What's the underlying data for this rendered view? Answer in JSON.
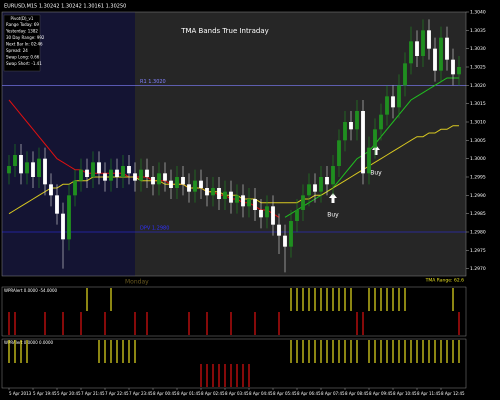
{
  "chart_data": {
    "type": "candlestick",
    "symbol_header": "EURUSD,M15  1.30242 1.30242 1.30161 1.30250",
    "title": "TMA Bands  True Intraday",
    "info_box": {
      "title": "Pivot(D)_v1",
      "rows": [
        "Range Today: 69",
        "Yesterday: 1382",
        "30 Day Range: 992",
        "Next Bar In: 02:46",
        "Spread: 24",
        "Swap Long: 0.66",
        "Swap Short: -1.41"
      ]
    },
    "levels": [
      {
        "label": "R1  1.3020",
        "value": 1.302,
        "color": "#8080ff"
      },
      {
        "label": "DPV  1.2980",
        "value": 1.298,
        "color": "#3030ff"
      }
    ],
    "annotations": [
      "Buy",
      "Buy",
      "Monday",
      "TMA Range: 62.6"
    ],
    "categories": [
      "5 Apr 2013",
      null,
      null,
      null,
      "5 Apr 19:45",
      null,
      null,
      null,
      "5 Apr 20:45",
      null,
      null,
      null,
      "7 Apr 21:45",
      null,
      null,
      null,
      "7 Apr 22:45",
      null,
      null,
      null,
      "7 Apr 23:45",
      null,
      null,
      null,
      "8 Apr 00:45",
      null,
      null,
      null,
      "8 Apr 01:45",
      null,
      null,
      null,
      "8 Apr 02:45",
      null,
      null,
      null,
      "8 Apr 03:45",
      null,
      null,
      null,
      "8 Apr 04:45",
      null,
      null,
      null,
      "8 Apr 05:45",
      null,
      null,
      null,
      "8 Apr 06:45",
      null,
      null,
      null,
      "8 Apr 07:45",
      null,
      null,
      null,
      "8 Apr 08:45",
      null,
      null,
      null,
      "8 Apr 09:45",
      null,
      null,
      null,
      "8 Apr 10:45",
      null,
      null,
      null,
      "8 Apr 11:45",
      null,
      null,
      null,
      "8 Apr 12:45",
      null,
      null,
      null
    ],
    "open": [
      1.2996,
      1.2998,
      1.3001,
      1.2996,
      1.2999,
      1.2995,
      1.3,
      1.2993,
      1.299,
      1.2985,
      1.2978,
      1.299,
      1.2994,
      1.2997,
      1.2995,
      1.2999,
      1.2996,
      1.2994,
      1.2997,
      1.2995,
      1.2998,
      1.2996,
      1.2994,
      1.2997,
      1.2995,
      1.2993,
      1.2996,
      1.2994,
      1.2992,
      1.2995,
      1.2993,
      1.2991,
      1.2994,
      1.2992,
      1.299,
      1.2992,
      1.2989,
      1.2991,
      1.2988,
      1.299,
      1.2987,
      1.2989,
      1.2986,
      1.2984,
      1.2987,
      1.2982,
      1.2979,
      1.2976,
      1.2983,
      1.2986,
      1.299,
      1.2993,
      1.2991,
      1.2995,
      1.2993,
      1.2998,
      1.3005,
      1.301,
      1.3008,
      1.3013,
      1.2996,
      1.3003,
      1.3008,
      1.3012,
      1.3017,
      1.3014,
      1.302,
      1.3026,
      1.3032,
      1.3028,
      1.3035,
      1.303,
      1.3024,
      1.3033,
      1.3027,
      1.3023
    ],
    "high": [
      1.3001,
      1.3004,
      1.3004,
      1.3002,
      1.3002,
      1.3003,
      1.3003,
      1.2996,
      1.2993,
      1.2988,
      1.2993,
      1.2997,
      1.3,
      1.3,
      1.3002,
      1.3002,
      1.2999,
      1.3,
      1.3,
      1.3001,
      1.3001,
      1.2999,
      1.3,
      1.3,
      1.2998,
      1.2999,
      1.2999,
      1.2997,
      1.2998,
      1.2998,
      1.2996,
      1.2997,
      1.2997,
      1.2995,
      1.2995,
      1.2995,
      1.2994,
      1.2994,
      1.2993,
      1.2993,
      1.2992,
      1.2992,
      1.2989,
      1.299,
      1.299,
      1.2985,
      1.2982,
      1.2986,
      1.2989,
      1.2993,
      1.2996,
      1.2996,
      1.2998,
      1.2998,
      1.3001,
      1.3008,
      1.3013,
      1.3013,
      1.3016,
      1.3016,
      1.3006,
      1.3011,
      1.3015,
      1.302,
      1.302,
      1.3023,
      1.3029,
      1.3036,
      1.3035,
      1.3038,
      1.3038,
      1.3033,
      1.3036,
      1.3036,
      1.303,
      1.3028
    ],
    "low": [
      1.2993,
      1.2995,
      1.2993,
      1.2993,
      1.2992,
      1.2992,
      1.299,
      1.2987,
      1.2982,
      1.297,
      1.2975,
      1.2987,
      1.2991,
      1.2992,
      1.2992,
      1.2993,
      1.2991,
      1.2991,
      1.2992,
      1.2992,
      1.2993,
      1.2991,
      1.2991,
      1.2992,
      1.299,
      1.299,
      1.2991,
      1.2989,
      1.2989,
      1.299,
      1.2988,
      1.2988,
      1.2989,
      1.2987,
      1.2987,
      1.2986,
      1.2986,
      1.2985,
      1.2985,
      1.2984,
      1.2984,
      1.2983,
      1.2981,
      1.2981,
      1.2979,
      1.2974,
      1.2969,
      1.2973,
      1.298,
      1.2983,
      1.2987,
      1.2988,
      1.2988,
      1.299,
      1.299,
      1.2995,
      1.3002,
      1.3005,
      1.3005,
      1.2993,
      1.2993,
      1.3,
      1.3005,
      1.3009,
      1.3011,
      1.3011,
      1.3017,
      1.3023,
      1.3025,
      1.3025,
      1.3027,
      1.3021,
      1.3021,
      1.3024,
      1.302,
      1.302
    ],
    "close": [
      1.2998,
      1.3001,
      1.2996,
      1.2999,
      1.2995,
      1.3,
      1.2993,
      1.299,
      1.2985,
      1.2978,
      1.299,
      1.2994,
      1.2997,
      1.2995,
      1.2999,
      1.2996,
      1.2994,
      1.2997,
      1.2995,
      1.2998,
      1.2996,
      1.2994,
      1.2997,
      1.2995,
      1.2993,
      1.2996,
      1.2994,
      1.2992,
      1.2995,
      1.2993,
      1.2991,
      1.2994,
      1.2992,
      1.299,
      1.2992,
      1.2989,
      1.2991,
      1.2988,
      1.299,
      1.2987,
      1.2989,
      1.2986,
      1.2984,
      1.2987,
      1.2982,
      1.2979,
      1.2976,
      1.2983,
      1.2986,
      1.299,
      1.2993,
      1.2991,
      1.2995,
      1.2993,
      1.2998,
      1.3005,
      1.301,
      1.3008,
      1.3013,
      1.2996,
      1.3003,
      1.3008,
      1.3012,
      1.3017,
      1.3014,
      1.302,
      1.3026,
      1.3032,
      1.3028,
      1.3035,
      1.303,
      1.3024,
      1.3033,
      1.3027,
      1.3023,
      1.3025
    ],
    "up_color": "#1f8f1f",
    "down_color": "#ffffff",
    "lines": [
      {
        "color": "#e01010",
        "values": [
          1.3016,
          1.3014,
          1.3012,
          1.301,
          1.3008,
          1.3006,
          1.3004,
          1.3002,
          1.3,
          1.2999,
          1.2998,
          1.2997,
          1.2997,
          1.2996,
          1.2996,
          1.2996,
          1.2996,
          1.2996,
          1.2996,
          1.2996,
          1.2995,
          1.2995,
          1.2995,
          1.2995,
          1.2994,
          1.2994,
          1.2994,
          1.2993,
          1.2993,
          1.2993,
          1.2992,
          1.2992,
          1.2992,
          1.2991,
          1.2991,
          1.299,
          1.299,
          1.2989,
          1.2989,
          1.2988,
          1.2988,
          1.2987,
          1.2986,
          1.2986,
          1.2985,
          1.2984,
          null,
          null,
          null,
          null,
          null,
          null,
          null,
          null,
          null,
          null,
          null,
          null,
          null,
          null,
          null,
          null,
          null,
          null,
          null,
          null,
          null,
          null,
          null,
          null,
          null,
          null,
          null,
          null,
          null,
          null
        ]
      },
      {
        "color": "#20c020",
        "values": [
          null,
          null,
          null,
          null,
          null,
          null,
          null,
          null,
          null,
          null,
          null,
          null,
          null,
          null,
          null,
          null,
          null,
          null,
          null,
          null,
          null,
          null,
          null,
          null,
          null,
          null,
          null,
          null,
          null,
          null,
          null,
          null,
          null,
          null,
          null,
          null,
          null,
          null,
          null,
          null,
          null,
          null,
          null,
          null,
          null,
          null,
          1.2984,
          1.2985,
          1.2986,
          1.2987,
          1.2988,
          1.2989,
          1.299,
          1.2991,
          1.2992,
          1.2994,
          1.2996,
          1.2998,
          1.3,
          1.3001,
          1.3002,
          1.3004,
          1.3006,
          1.3008,
          1.301,
          1.3012,
          1.3014,
          1.3016,
          1.3017,
          1.3018,
          1.3019,
          1.302,
          1.3021,
          1.3022,
          1.3022,
          1.3022
        ]
      },
      {
        "color": "#d8c820",
        "values": [
          1.2985,
          1.2986,
          1.2987,
          1.2988,
          1.2989,
          1.299,
          1.2991,
          1.2992,
          1.2992,
          1.2993,
          1.2993,
          1.2994,
          1.2994,
          1.2994,
          1.2995,
          1.2995,
          1.2995,
          1.2995,
          1.2995,
          1.2995,
          1.2995,
          1.2995,
          1.2994,
          1.2994,
          1.2994,
          1.2994,
          1.2993,
          1.2993,
          1.2993,
          1.2993,
          1.2992,
          1.2992,
          1.2992,
          1.2991,
          1.2991,
          1.2991,
          1.299,
          1.299,
          1.299,
          1.2989,
          1.2989,
          1.2989,
          1.2988,
          1.2988,
          1.2988,
          1.2988,
          1.2988,
          1.2988,
          1.2988,
          1.2989,
          1.2989,
          1.299,
          1.299,
          1.2991,
          1.2992,
          1.2993,
          1.2994,
          1.2995,
          1.2996,
          1.2997,
          1.2998,
          1.2999,
          1.3,
          1.3001,
          1.3002,
          1.3003,
          1.3004,
          1.3005,
          1.3006,
          1.3006,
          1.3007,
          1.3007,
          1.3008,
          1.3008,
          1.3009,
          1.3009
        ]
      }
    ],
    "ylim": [
      1.2968,
      1.304
    ],
    "yticks": [
      {
        "value": 1.297,
        "label": "1.2970"
      },
      {
        "value": 1.2975,
        "label": "1.2975"
      },
      {
        "value": 1.298,
        "label": "1.2980"
      },
      {
        "value": 1.2985,
        "label": "1.2985"
      },
      {
        "value": 1.299,
        "label": "1.2990"
      },
      {
        "value": 1.2995,
        "label": "1.2995"
      },
      {
        "value": 1.3,
        "label": "1.3000"
      },
      {
        "value": 1.3005,
        "label": "1.3005"
      },
      {
        "value": 1.301,
        "label": "1.3010"
      },
      {
        "value": 1.3015,
        "label": "1.3015"
      },
      {
        "value": 1.302,
        "label": "1.3020"
      },
      {
        "value": 1.3025,
        "label": "1.3025"
      },
      {
        "value": 1.303,
        "label": "1.3030"
      },
      {
        "value": 1.3035,
        "label": "1.3035"
      },
      {
        "value": 1.304,
        "label": "1.3040"
      }
    ],
    "panels": [
      {
        "label": "WPRAlert 0.0000 -54.0000",
        "signals": [
          -1,
          -1,
          0,
          0,
          0,
          0,
          -1,
          0,
          0,
          -1,
          0,
          0,
          -1,
          1,
          0,
          0,
          -1,
          1,
          0,
          0,
          0,
          -1,
          0,
          -1,
          0,
          0,
          0,
          0,
          0,
          0,
          -1,
          0,
          0,
          -1,
          0,
          0,
          0,
          -1,
          0,
          0,
          0,
          -1,
          0,
          0,
          0,
          -1,
          0,
          1,
          1,
          1,
          1,
          1,
          1,
          1,
          1,
          1,
          1,
          1,
          -1,
          -1,
          1,
          1,
          1,
          1,
          1,
          1,
          1,
          0,
          0,
          0,
          0,
          0,
          0,
          0,
          1,
          -1
        ]
      },
      {
        "label": "WPRAlert 0.0000 0.0000",
        "signals": [
          1,
          1,
          1,
          1,
          0,
          0,
          0,
          0,
          0,
          0,
          0,
          0,
          0,
          0,
          0,
          1,
          1,
          1,
          1,
          1,
          1,
          1,
          0,
          0,
          0,
          0,
          0,
          0,
          0,
          0,
          0,
          0,
          -1,
          -1,
          -1,
          -1,
          -1,
          -1,
          -1,
          -1,
          -1,
          0,
          0,
          0,
          0,
          0,
          0,
          1,
          1,
          1,
          1,
          1,
          1,
          1,
          1,
          1,
          1,
          1,
          1,
          0,
          1,
          1,
          1,
          1,
          1,
          1,
          1,
          1,
          1,
          1,
          1,
          1,
          1,
          1,
          1,
          1
        ]
      }
    ],
    "signal_colors": {
      "up": "#e8e020",
      "down": "#e01010"
    }
  }
}
